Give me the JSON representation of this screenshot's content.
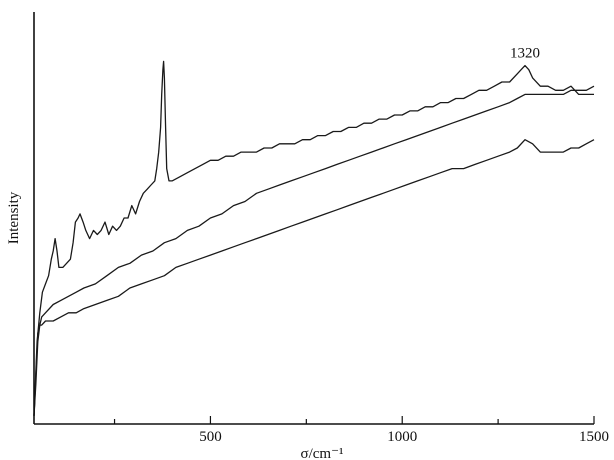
{
  "chart_data": {
    "type": "line",
    "title": "",
    "xlabel": "σ/cm⁻¹",
    "ylabel": "Intensity",
    "xlim": [
      40,
      1500
    ],
    "ylim": [
      0,
      1
    ],
    "x_ticks": [
      500,
      1000,
      1500
    ],
    "x_tick_labels": [
      "500",
      "1000",
      "1500"
    ],
    "y_ticks": [],
    "grid": false,
    "legend": "none",
    "annotations": [
      {
        "text": "1320",
        "x": 1320,
        "y": 0.89
      }
    ],
    "series": [
      {
        "values": [
          [
            40,
            0.02
          ],
          [
            48,
            0.2
          ],
          [
            55,
            0.27
          ],
          [
            62,
            0.32
          ],
          [
            70,
            0.34
          ],
          [
            78,
            0.36
          ],
          [
            85,
            0.4
          ],
          [
            90,
            0.42
          ],
          [
            95,
            0.45
          ],
          [
            100,
            0.42
          ],
          [
            105,
            0.38
          ],
          [
            115,
            0.38
          ],
          [
            125,
            0.39
          ],
          [
            135,
            0.4
          ],
          [
            142,
            0.44
          ],
          [
            148,
            0.49
          ],
          [
            155,
            0.5
          ],
          [
            160,
            0.51
          ],
          [
            168,
            0.49
          ],
          [
            175,
            0.47
          ],
          [
            185,
            0.45
          ],
          [
            195,
            0.47
          ],
          [
            205,
            0.46
          ],
          [
            215,
            0.47
          ],
          [
            225,
            0.49
          ],
          [
            235,
            0.46
          ],
          [
            245,
            0.48
          ],
          [
            255,
            0.47
          ],
          [
            265,
            0.48
          ],
          [
            275,
            0.5
          ],
          [
            285,
            0.5
          ],
          [
            295,
            0.53
          ],
          [
            305,
            0.51
          ],
          [
            315,
            0.54
          ],
          [
            325,
            0.56
          ],
          [
            335,
            0.57
          ],
          [
            345,
            0.58
          ],
          [
            355,
            0.59
          ],
          [
            360,
            0.62
          ],
          [
            365,
            0.66
          ],
          [
            370,
            0.72
          ],
          [
            373,
            0.8
          ],
          [
            376,
            0.86
          ],
          [
            378,
            0.88
          ],
          [
            380,
            0.84
          ],
          [
            383,
            0.72
          ],
          [
            386,
            0.62
          ],
          [
            392,
            0.59
          ],
          [
            400,
            0.59
          ],
          [
            420,
            0.6
          ],
          [
            440,
            0.61
          ],
          [
            460,
            0.62
          ],
          [
            480,
            0.63
          ],
          [
            500,
            0.64
          ],
          [
            520,
            0.64
          ],
          [
            540,
            0.65
          ],
          [
            560,
            0.65
          ],
          [
            580,
            0.66
          ],
          [
            600,
            0.66
          ],
          [
            620,
            0.66
          ],
          [
            640,
            0.67
          ],
          [
            660,
            0.67
          ],
          [
            680,
            0.68
          ],
          [
            700,
            0.68
          ],
          [
            720,
            0.68
          ],
          [
            740,
            0.69
          ],
          [
            760,
            0.69
          ],
          [
            780,
            0.7
          ],
          [
            800,
            0.7
          ],
          [
            820,
            0.71
          ],
          [
            840,
            0.71
          ],
          [
            860,
            0.72
          ],
          [
            880,
            0.72
          ],
          [
            900,
            0.73
          ],
          [
            920,
            0.73
          ],
          [
            940,
            0.74
          ],
          [
            960,
            0.74
          ],
          [
            980,
            0.75
          ],
          [
            1000,
            0.75
          ],
          [
            1020,
            0.76
          ],
          [
            1040,
            0.76
          ],
          [
            1060,
            0.77
          ],
          [
            1080,
            0.77
          ],
          [
            1100,
            0.78
          ],
          [
            1120,
            0.78
          ],
          [
            1140,
            0.79
          ],
          [
            1160,
            0.79
          ],
          [
            1180,
            0.8
          ],
          [
            1200,
            0.81
          ],
          [
            1220,
            0.81
          ],
          [
            1240,
            0.82
          ],
          [
            1260,
            0.83
          ],
          [
            1280,
            0.83
          ],
          [
            1300,
            0.85
          ],
          [
            1310,
            0.86
          ],
          [
            1320,
            0.87
          ],
          [
            1330,
            0.86
          ],
          [
            1340,
            0.84
          ],
          [
            1360,
            0.82
          ],
          [
            1380,
            0.82
          ],
          [
            1400,
            0.81
          ],
          [
            1420,
            0.81
          ],
          [
            1440,
            0.82
          ],
          [
            1460,
            0.8
          ],
          [
            1480,
            0.8
          ],
          [
            1500,
            0.8
          ]
        ]
      },
      {
        "values": [
          [
            40,
            0.02
          ],
          [
            45,
            0.1
          ],
          [
            50,
            0.2
          ],
          [
            55,
            0.24
          ],
          [
            60,
            0.26
          ],
          [
            70,
            0.27
          ],
          [
            90,
            0.29
          ],
          [
            110,
            0.3
          ],
          [
            130,
            0.31
          ],
          [
            150,
            0.32
          ],
          [
            170,
            0.33
          ],
          [
            200,
            0.34
          ],
          [
            230,
            0.36
          ],
          [
            260,
            0.38
          ],
          [
            290,
            0.39
          ],
          [
            320,
            0.41
          ],
          [
            350,
            0.42
          ],
          [
            380,
            0.44
          ],
          [
            410,
            0.45
          ],
          [
            440,
            0.47
          ],
          [
            470,
            0.48
          ],
          [
            500,
            0.5
          ],
          [
            530,
            0.51
          ],
          [
            560,
            0.53
          ],
          [
            590,
            0.54
          ],
          [
            620,
            0.56
          ],
          [
            650,
            0.57
          ],
          [
            680,
            0.58
          ],
          [
            710,
            0.59
          ],
          [
            740,
            0.6
          ],
          [
            770,
            0.61
          ],
          [
            800,
            0.62
          ],
          [
            830,
            0.63
          ],
          [
            860,
            0.64
          ],
          [
            890,
            0.65
          ],
          [
            920,
            0.66
          ],
          [
            950,
            0.67
          ],
          [
            980,
            0.68
          ],
          [
            1010,
            0.69
          ],
          [
            1040,
            0.7
          ],
          [
            1070,
            0.71
          ],
          [
            1100,
            0.72
          ],
          [
            1130,
            0.73
          ],
          [
            1160,
            0.74
          ],
          [
            1190,
            0.75
          ],
          [
            1220,
            0.76
          ],
          [
            1250,
            0.77
          ],
          [
            1280,
            0.78
          ],
          [
            1300,
            0.79
          ],
          [
            1320,
            0.8
          ],
          [
            1340,
            0.8
          ],
          [
            1360,
            0.8
          ],
          [
            1380,
            0.8
          ],
          [
            1400,
            0.8
          ],
          [
            1420,
            0.8
          ],
          [
            1440,
            0.81
          ],
          [
            1460,
            0.81
          ],
          [
            1480,
            0.81
          ],
          [
            1500,
            0.82
          ]
        ]
      },
      {
        "values": [
          [
            40,
            0.02
          ],
          [
            45,
            0.12
          ],
          [
            50,
            0.22
          ],
          [
            55,
            0.24
          ],
          [
            60,
            0.24
          ],
          [
            70,
            0.25
          ],
          [
            90,
            0.25
          ],
          [
            110,
            0.26
          ],
          [
            130,
            0.27
          ],
          [
            150,
            0.27
          ],
          [
            170,
            0.28
          ],
          [
            200,
            0.29
          ],
          [
            230,
            0.3
          ],
          [
            260,
            0.31
          ],
          [
            290,
            0.33
          ],
          [
            320,
            0.34
          ],
          [
            350,
            0.35
          ],
          [
            380,
            0.36
          ],
          [
            410,
            0.38
          ],
          [
            440,
            0.39
          ],
          [
            470,
            0.4
          ],
          [
            500,
            0.41
          ],
          [
            530,
            0.42
          ],
          [
            560,
            0.43
          ],
          [
            590,
            0.44
          ],
          [
            620,
            0.45
          ],
          [
            650,
            0.46
          ],
          [
            680,
            0.47
          ],
          [
            710,
            0.48
          ],
          [
            740,
            0.49
          ],
          [
            770,
            0.5
          ],
          [
            800,
            0.51
          ],
          [
            830,
            0.52
          ],
          [
            860,
            0.53
          ],
          [
            890,
            0.54
          ],
          [
            920,
            0.55
          ],
          [
            950,
            0.56
          ],
          [
            980,
            0.57
          ],
          [
            1010,
            0.58
          ],
          [
            1040,
            0.59
          ],
          [
            1070,
            0.6
          ],
          [
            1100,
            0.61
          ],
          [
            1130,
            0.62
          ],
          [
            1160,
            0.62
          ],
          [
            1190,
            0.63
          ],
          [
            1220,
            0.64
          ],
          [
            1250,
            0.65
          ],
          [
            1280,
            0.66
          ],
          [
            1300,
            0.67
          ],
          [
            1320,
            0.69
          ],
          [
            1340,
            0.68
          ],
          [
            1360,
            0.66
          ],
          [
            1380,
            0.66
          ],
          [
            1400,
            0.66
          ],
          [
            1420,
            0.66
          ],
          [
            1440,
            0.67
          ],
          [
            1460,
            0.67
          ],
          [
            1480,
            0.68
          ],
          [
            1500,
            0.69
          ]
        ]
      }
    ]
  }
}
